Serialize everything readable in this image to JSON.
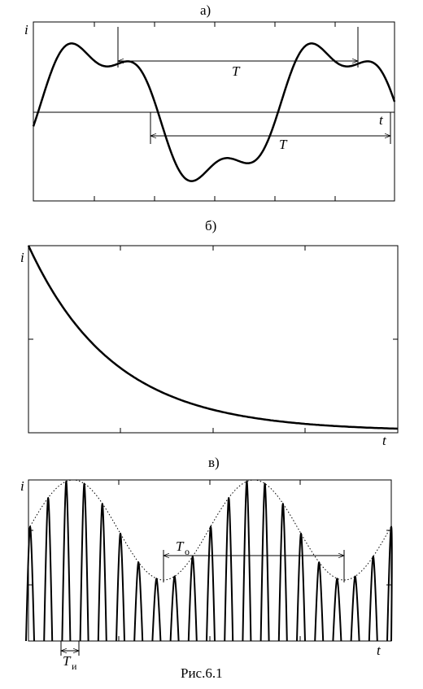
{
  "panels": [
    {
      "label": "а)",
      "y_label": "i",
      "x_label": "t",
      "period_labels": [
        "T",
        "T"
      ]
    },
    {
      "label": "б)",
      "y_label": "i",
      "x_label": "t"
    },
    {
      "label": "в)",
      "y_label": "i",
      "x_label": "t",
      "period_labels": [
        {
          "symbol": "T",
          "subscript": "о"
        },
        {
          "symbol": "T",
          "subscript": "и"
        }
      ]
    }
  ],
  "caption": "Рис.6.1"
}
